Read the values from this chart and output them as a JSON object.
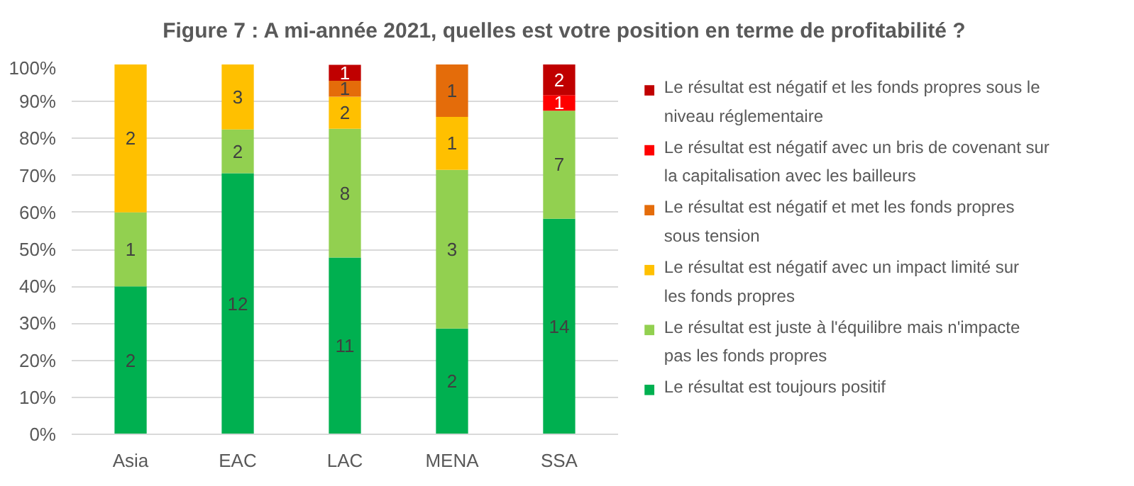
{
  "chart_data": {
    "type": "bar",
    "stacked": true,
    "title": "Figure 7 : A mi-année 2021, quelles est votre position en terme de profitabilité ?",
    "categories": [
      "Asia",
      "EAC",
      "LAC",
      "MENA",
      "SSA"
    ],
    "ylim": [
      0,
      100
    ],
    "yticks": [
      {
        "value": 0,
        "label": "0%"
      },
      {
        "value": 10,
        "label": "10%"
      },
      {
        "value": 20,
        "label": "20%"
      },
      {
        "value": 30,
        "label": "30%"
      },
      {
        "value": 40,
        "label": "40%"
      },
      {
        "value": 50,
        "label": "50%"
      },
      {
        "value": 60,
        "label": "60%"
      },
      {
        "value": 70,
        "label": "70%"
      },
      {
        "value": 80,
        "label": "80%"
      },
      {
        "value": 90,
        "label": "90%"
      },
      {
        "value": 100,
        "label": "100%"
      }
    ],
    "grid": "y",
    "legend": "right",
    "series": [
      {
        "name": "Le résultat est toujours positif",
        "color": "#00b050",
        "values": [
          40,
          70.6,
          47.8,
          28.6,
          58.3
        ]
      },
      {
        "name": "Le résultat est juste à l'équilibre mais n'impacte pas les fonds propres",
        "color": "#92d050",
        "values": [
          20,
          11.8,
          34.8,
          42.9,
          29.2
        ]
      },
      {
        "name": "Le résultat est négatif avec un impact limité sur les fonds propres",
        "color": "#ffc000",
        "values": [
          40,
          17.6,
          8.7,
          14.3,
          null
        ]
      },
      {
        "name": "Le résultat est négatif et met les fonds propres sous tension",
        "color": "#e46c0a",
        "values": [
          null,
          null,
          4.3,
          14.3,
          null
        ]
      },
      {
        "name": "Le résultat est négatif avec un bris de covenant sur la capitalisation avec les bailleurs",
        "color": "#ff0000",
        "values": [
          null,
          null,
          null,
          null,
          4.2
        ]
      },
      {
        "name": "Le résultat est négatif et les fonds propres sous le niveau réglementaire",
        "color": "#c00000",
        "values": [
          null,
          null,
          4.3,
          null,
          8.3
        ]
      }
    ],
    "annotations": [
      "2",
      "12",
      "11",
      "2",
      "14",
      "1",
      "2",
      "8",
      "3",
      "7",
      "2",
      "3",
      "2",
      "1",
      "1",
      "1",
      "1",
      "1",
      "2"
    ]
  }
}
